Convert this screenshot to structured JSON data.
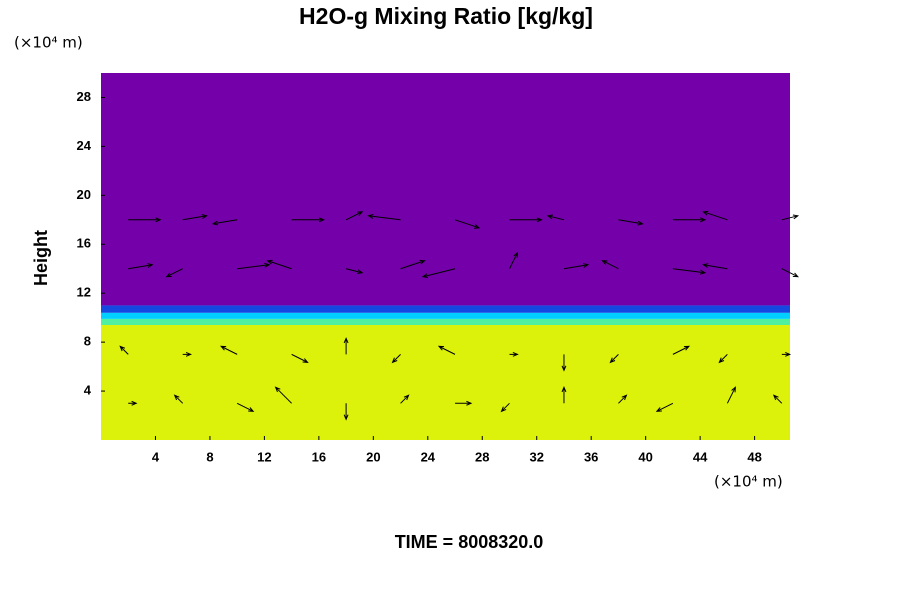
{
  "chart_data": {
    "type": "field",
    "title": "H2O-g Mixing Ratio [kg/kg]",
    "ylabel": "Height",
    "y_unit": "(×10⁴ m)",
    "x_unit": "(×10⁴ m)",
    "footer": "TIME = 8008320.0",
    "xlim": [
      0,
      50.6
    ],
    "ylim": [
      0,
      30
    ],
    "xticks": [
      4,
      8,
      12,
      16,
      20,
      24,
      28,
      32,
      36,
      40,
      44,
      48
    ],
    "yticks": [
      4,
      8,
      12,
      16,
      20,
      24,
      28
    ],
    "layers": [
      {
        "y0": 0,
        "y1": 9.4,
        "color": "#dcf20a"
      },
      {
        "y0": 9.4,
        "y1": 9.9,
        "color": "#50f0a0"
      },
      {
        "y0": 9.9,
        "y1": 10.4,
        "color": "#00d0ff"
      },
      {
        "y0": 10.4,
        "y1": 11.0,
        "color": "#1448e0"
      },
      {
        "y0": 11.0,
        "y1": 30,
        "color": "#7300a8"
      }
    ],
    "vector_color": "#000000",
    "vector_x": [
      2,
      6,
      10,
      14,
      18,
      22,
      26,
      30,
      34,
      38,
      42,
      46,
      50
    ],
    "vector_rows": [
      {
        "y": 3,
        "u": [
          1,
          -1,
          2,
          -2,
          0,
          1,
          2,
          -1,
          0,
          1,
          -2,
          1,
          -1
        ],
        "v": [
          0,
          1,
          -1,
          2,
          -2,
          1,
          0,
          -1,
          2,
          1,
          -1,
          2,
          1
        ]
      },
      {
        "y": 7,
        "u": [
          -1,
          1,
          -2,
          2,
          0,
          -1,
          -2,
          1,
          0,
          -1,
          2,
          -1,
          1
        ],
        "v": [
          1,
          0,
          1,
          -1,
          2,
          -1,
          1,
          0,
          -2,
          -1,
          1,
          -1,
          0
        ]
      },
      {
        "y": 14,
        "u": [
          3,
          -2,
          4,
          -3,
          2,
          3,
          -4,
          1,
          3,
          -2,
          4,
          -3,
          2
        ],
        "v": [
          0.5,
          -1,
          0.5,
          1,
          -0.5,
          1,
          -1,
          2,
          0.5,
          1,
          -0.5,
          0.5,
          -1
        ]
      },
      {
        "y": 18,
        "u": [
          4,
          3,
          -3,
          4,
          2,
          -4,
          3,
          4,
          -2,
          3,
          4,
          -3,
          2
        ],
        "v": [
          0,
          0.5,
          -0.5,
          0,
          1,
          0.5,
          -1,
          0,
          0.5,
          -0.5,
          0,
          1,
          0.5
        ]
      }
    ]
  }
}
